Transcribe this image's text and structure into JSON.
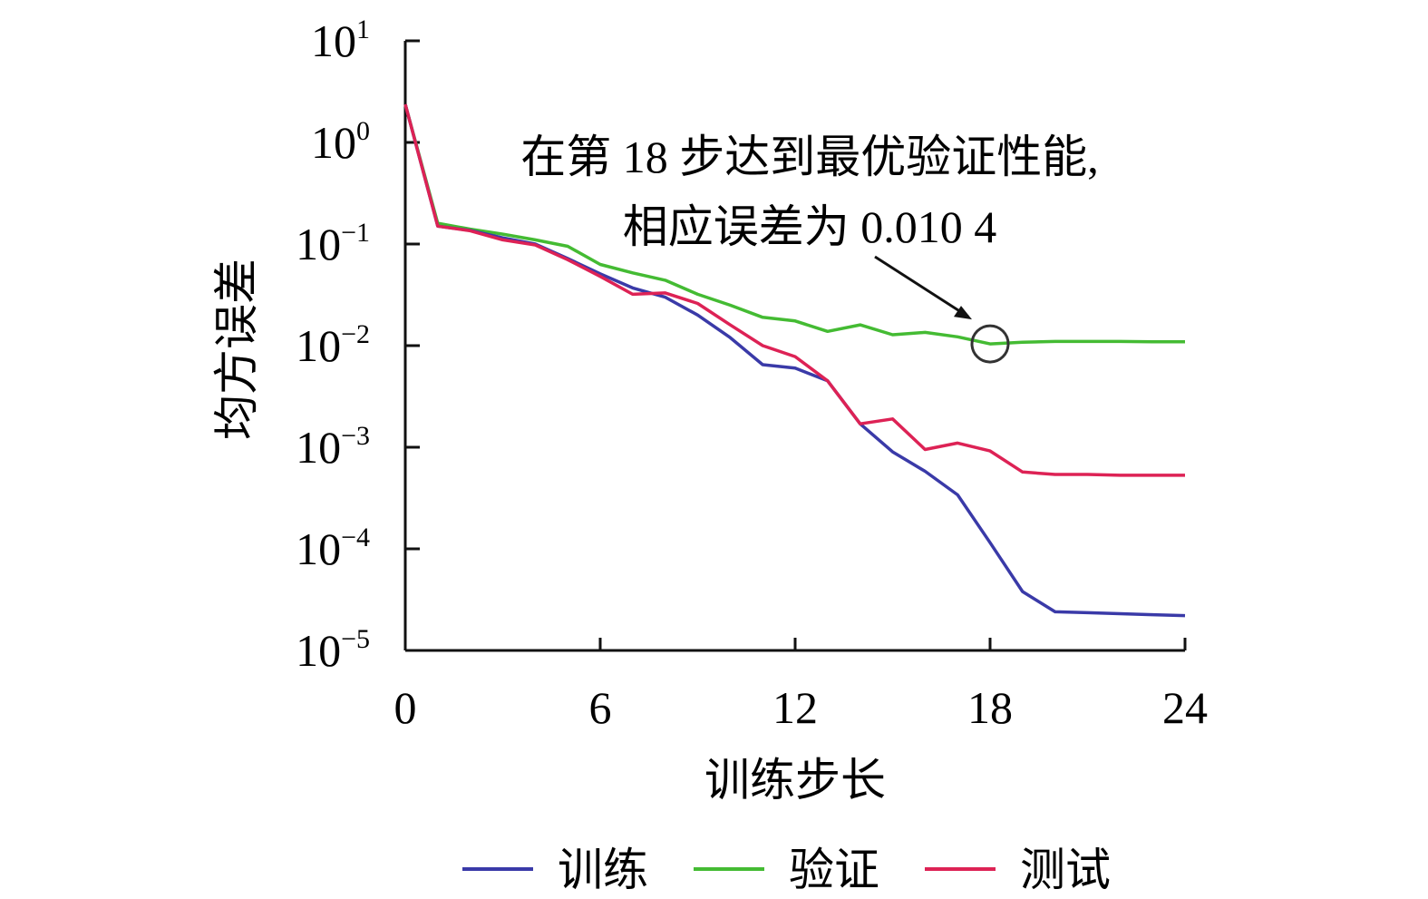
{
  "chart_data": {
    "type": "line",
    "xlabel": "训练步长",
    "ylabel": "均方误差",
    "xlim": [
      0,
      24
    ],
    "ylim": [
      1e-05,
      10
    ],
    "yscale": "log",
    "xticks": [
      0,
      6,
      12,
      18,
      24
    ],
    "xtick_labels": [
      "0",
      "6",
      "12",
      "18",
      "24"
    ],
    "yticks": [
      10,
      1,
      0.1,
      0.01,
      0.001,
      0.0001,
      1e-05
    ],
    "ytick_labels": [
      {
        "base": "10",
        "exp": "1"
      },
      {
        "base": "10",
        "exp": "0"
      },
      {
        "base": "10",
        "exp": "−1"
      },
      {
        "base": "10",
        "exp": "−2"
      },
      {
        "base": "10",
        "exp": "−3"
      },
      {
        "base": "10",
        "exp": "−4"
      },
      {
        "base": "10",
        "exp": "−5"
      }
    ],
    "grid": false,
    "legend_position": "bottom",
    "x": [
      0,
      1,
      2,
      3,
      4,
      5,
      6,
      7,
      8,
      9,
      10,
      11,
      12,
      13,
      14,
      15,
      16,
      17,
      18,
      19,
      20,
      21,
      22,
      23,
      24
    ],
    "series": [
      {
        "name": "训练",
        "color": "#3a3aa8",
        "values": [
          2.37,
          0.15,
          0.136,
          0.115,
          0.1,
          0.072,
          0.051,
          0.037,
          0.03,
          0.02,
          0.012,
          0.0065,
          0.006,
          0.0045,
          0.0017,
          0.0009,
          0.00058,
          0.00034,
          0.000115,
          3.8e-05,
          2.4e-05,
          2.35e-05,
          2.3e-05,
          2.25e-05,
          2.2e-05
        ]
      },
      {
        "name": "验证",
        "color": "#44bb33",
        "values": [
          2.37,
          0.16,
          0.14,
          0.125,
          0.11,
          0.095,
          0.063,
          0.052,
          0.044,
          0.032,
          0.025,
          0.019,
          0.0175,
          0.0138,
          0.016,
          0.0128,
          0.0135,
          0.0122,
          0.0104,
          0.0108,
          0.011,
          0.011,
          0.011,
          0.0109,
          0.0109
        ]
      },
      {
        "name": "测试",
        "color": "#dd2255",
        "values": [
          2.37,
          0.15,
          0.135,
          0.11,
          0.098,
          0.07,
          0.048,
          0.032,
          0.033,
          0.026,
          0.016,
          0.01,
          0.0078,
          0.0045,
          0.0017,
          0.0019,
          0.00095,
          0.0011,
          0.00092,
          0.00057,
          0.00054,
          0.00054,
          0.00053,
          0.00053,
          0.00053
        ]
      }
    ],
    "annotations": [
      {
        "lines": [
          "在第 18 步达到最优验证性能,",
          "相应误差为 0.010 4"
        ],
        "target_x": 18,
        "target_y": 0.0104
      }
    ]
  }
}
